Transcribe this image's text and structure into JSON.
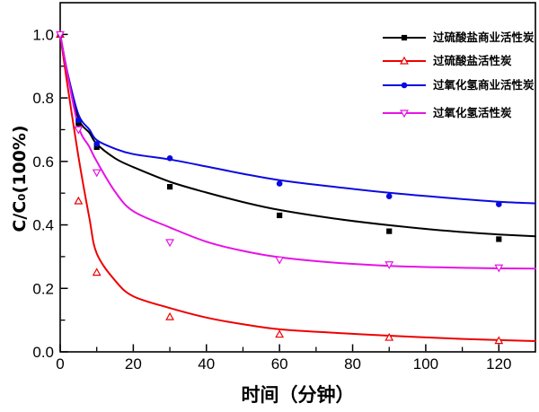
{
  "page": {
    "background": "#ffffff"
  },
  "chart_data": {
    "type": "line",
    "title": "",
    "xlabel": "时间（分钟）",
    "ylabel": "C/C₀(100%)",
    "xlim": [
      0,
      130
    ],
    "ylim": [
      0,
      1.1
    ],
    "x_major_ticks": [
      0,
      20,
      40,
      60,
      80,
      100,
      120
    ],
    "x_minor_ticks": [
      10,
      30,
      50,
      70,
      90,
      110
    ],
    "y_major_ticks": [
      0.0,
      0.2,
      0.4,
      0.6,
      0.8,
      1.0
    ],
    "y_minor_ticks": [
      0.1,
      0.3,
      0.5,
      0.7,
      0.9
    ],
    "grid": false,
    "frame": true,
    "legend_position": "top-right",
    "axis_color": "#000000",
    "series": [
      {
        "name": "过硫酸盐商业活性炭",
        "slug": "persulfate-commercial-ac",
        "color": "#000000",
        "marker": "square-filled",
        "x": [
          0,
          5,
          10,
          30,
          60,
          90,
          120
        ],
        "values": [
          1.0,
          0.72,
          0.645,
          0.52,
          0.43,
          0.38,
          0.355
        ],
        "curve": [
          [
            0,
            1.0
          ],
          [
            2,
            0.875
          ],
          [
            5,
            0.735
          ],
          [
            8,
            0.69
          ],
          [
            10,
            0.655
          ],
          [
            15,
            0.61
          ],
          [
            20,
            0.582
          ],
          [
            30,
            0.536
          ],
          [
            40,
            0.502
          ],
          [
            50,
            0.472
          ],
          [
            60,
            0.447
          ],
          [
            75,
            0.42
          ],
          [
            90,
            0.399
          ],
          [
            105,
            0.382
          ],
          [
            120,
            0.37
          ],
          [
            130,
            0.364
          ]
        ]
      },
      {
        "name": "过硫酸盐活性炭",
        "slug": "persulfate-ac",
        "color": "#ee0000",
        "marker": "triangle-up-open",
        "x": [
          0,
          5,
          10,
          30,
          60,
          90,
          120
        ],
        "values": [
          1.0,
          0.475,
          0.25,
          0.11,
          0.055,
          0.045,
          0.035
        ],
        "curve": [
          [
            0,
            1.0
          ],
          [
            2,
            0.84
          ],
          [
            5,
            0.615
          ],
          [
            8,
            0.42
          ],
          [
            10,
            0.31
          ],
          [
            15,
            0.225
          ],
          [
            20,
            0.175
          ],
          [
            30,
            0.138
          ],
          [
            40,
            0.108
          ],
          [
            50,
            0.087
          ],
          [
            60,
            0.071
          ],
          [
            75,
            0.06
          ],
          [
            90,
            0.051
          ],
          [
            105,
            0.043
          ],
          [
            120,
            0.037
          ],
          [
            130,
            0.034
          ]
        ]
      },
      {
        "name": "过氧化氢商业活性炭",
        "slug": "h2o2-commercial-ac",
        "color": "#0a0ae0",
        "marker": "circle-filled",
        "x": [
          0,
          5,
          10,
          30,
          60,
          90,
          120
        ],
        "values": [
          1.0,
          0.73,
          0.655,
          0.61,
          0.53,
          0.49,
          0.465
        ],
        "curve": [
          [
            0,
            1.0
          ],
          [
            2,
            0.88
          ],
          [
            5,
            0.748
          ],
          [
            8,
            0.7
          ],
          [
            10,
            0.667
          ],
          [
            15,
            0.64
          ],
          [
            20,
            0.623
          ],
          [
            30,
            0.606
          ],
          [
            40,
            0.584
          ],
          [
            50,
            0.561
          ],
          [
            60,
            0.541
          ],
          [
            75,
            0.52
          ],
          [
            90,
            0.501
          ],
          [
            105,
            0.486
          ],
          [
            120,
            0.473
          ],
          [
            130,
            0.468
          ]
        ]
      },
      {
        "name": "过氧化氢活性炭",
        "slug": "h2o2-ac",
        "color": "#e612e6",
        "marker": "triangle-down-open",
        "x": [
          0,
          5,
          10,
          30,
          60,
          90,
          120
        ],
        "values": [
          1.0,
          0.7,
          0.565,
          0.345,
          0.29,
          0.275,
          0.265
        ],
        "curve": [
          [
            0,
            1.0
          ],
          [
            2,
            0.875
          ],
          [
            5,
            0.71
          ],
          [
            8,
            0.645
          ],
          [
            10,
            0.6
          ],
          [
            15,
            0.505
          ],
          [
            20,
            0.443
          ],
          [
            30,
            0.392
          ],
          [
            40,
            0.347
          ],
          [
            50,
            0.318
          ],
          [
            60,
            0.298
          ],
          [
            75,
            0.281
          ],
          [
            90,
            0.271
          ],
          [
            105,
            0.266
          ],
          [
            120,
            0.263
          ],
          [
            130,
            0.262
          ]
        ]
      }
    ]
  }
}
